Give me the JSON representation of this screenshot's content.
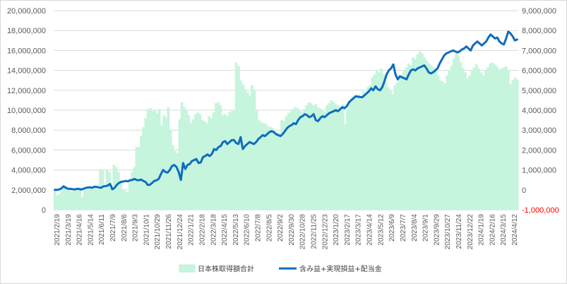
{
  "chart_data": {
    "type": "bar+line",
    "colors": {
      "bars": "#c6f5dd",
      "line": "#0f6cbd",
      "grid": "#d9d9d9",
      "negative_tick": "#ff0000"
    },
    "left_axis": {
      "min": 0,
      "max": 20000000,
      "step": 2000000,
      "tick_labels": [
        "0",
        "2,000,000",
        "4,000,000",
        "6,000,000",
        "8,000,000",
        "10,000,000",
        "12,000,000",
        "14,000,000",
        "16,000,000",
        "18,000,000",
        "20,000,000"
      ]
    },
    "right_axis": {
      "min": -1000000,
      "max": 9000000,
      "step": 1000000,
      "tick_labels": [
        "-1,000,000",
        "0",
        "1,000,000",
        "2,000,000",
        "3,000,000",
        "4,000,000",
        "5,000,000",
        "6,000,000",
        "7,000,000",
        "8,000,000",
        "9,000,000"
      ]
    },
    "x_tick_labels": [
      "2021/2/19",
      "2021/3/19",
      "2021/4/16",
      "2021/5/14",
      "2021/6/11",
      "2021/7/9",
      "2021/8/6",
      "2021/9/3",
      "2021/10/1",
      "2021/10/29",
      "2021/11/26",
      "2021/12/24",
      "2022/1/21",
      "2022/2/18",
      "2022/3/18",
      "2022/4/15",
      "2022/5/13",
      "2022/6/10",
      "2022/7/8",
      "2022/8/5",
      "2022/9/2",
      "2022/9/30",
      "2022/10/28",
      "2022/11/25",
      "2022/12/23",
      "2023/1/20",
      "2023/2/17",
      "2023/3/17",
      "2023/4/14",
      "2023/5/12",
      "2023/6/9",
      "2023/7/7",
      "2023/8/4",
      "2023/9/1",
      "2023/9/29",
      "2023/10/27",
      "2023/11/24",
      "2023/12/22",
      "2024/1/19",
      "2024/2/16",
      "2024/3/15",
      "2024/4/12"
    ],
    "series": [
      {
        "name": "日本株取得額合計",
        "type": "bar",
        "axis": "left",
        "values": [
          2100000,
          1500000,
          1600000,
          2100000,
          2200000,
          2400000,
          2100000,
          1900000,
          1900000,
          2000000,
          2200000,
          2300000,
          1300000,
          2000000,
          2000000,
          2100000,
          2300000,
          2200000,
          2200000,
          2100000,
          4100000,
          4000000,
          2500000,
          4000000,
          3800000,
          2500000,
          4500000,
          4300000,
          3800000,
          3000000,
          2100000,
          1900000,
          1800000,
          2900000,
          3800000,
          4300000,
          6300000,
          6300000,
          7400000,
          8300000,
          9200000,
          10100000,
          10200000,
          9900000,
          10000000,
          9700000,
          10100000,
          8500000,
          9500000,
          9300000,
          10300000,
          8000000,
          6500000,
          5900000,
          5700000,
          9100000,
          10800000,
          10300000,
          10000000,
          9500000,
          8700000,
          9100000,
          9600000,
          9800000,
          9600000,
          9000000,
          8900000,
          8700000,
          9400000,
          9200000,
          9800000,
          10700000,
          10800000,
          10500000,
          9500000,
          9600000,
          9400000,
          9800000,
          9900000,
          10000000,
          14800000,
          14400000,
          13000000,
          12600000,
          12100000,
          11800000,
          11500000,
          12500000,
          12000000,
          10000000,
          9000000,
          8800000,
          8700000,
          8600000,
          8400000,
          8300000,
          8200000,
          8000000,
          7800000,
          7700000,
          9000000,
          8900000,
          9400000,
          9700000,
          9900000,
          10100000,
          10300000,
          10200000,
          10000000,
          9800000,
          10100000,
          10500000,
          10800000,
          10700000,
          10500000,
          10600000,
          10300000,
          10200000,
          10000000,
          9800000,
          10500000,
          10700000,
          11000000,
          10800000,
          10600000,
          10500000,
          10400000,
          10600000,
          8600000,
          10100000,
          10800000,
          11300000,
          11200000,
          11500000,
          11600000,
          11300000,
          11900000,
          11700000,
          12300000,
          12500000,
          13300000,
          13600000,
          14000000,
          13800000,
          14200000,
          13600000,
          12800000,
          12300000,
          12000000,
          11600000,
          12500000,
          12800000,
          13300000,
          13600000,
          14000000,
          14300000,
          14700000,
          14500000,
          15300000,
          15100000,
          15600000,
          15900000,
          15700000,
          15300000,
          15000000,
          14700000,
          14500000,
          14300000,
          14000000,
          13500000,
          13000000,
          12900000,
          12700000,
          13500000,
          14000000,
          14500000,
          15200000,
          15700000,
          15500000,
          14800000,
          14200000,
          13800000,
          13200000,
          13500000,
          14000000,
          14300000,
          14600000,
          14200000,
          13800000,
          13500000,
          14000000,
          14300000,
          14700000,
          14800000,
          14600000,
          14400000,
          14100000,
          14200000,
          14300000,
          14400000,
          14000000,
          12600000,
          13000000,
          13300000,
          13100000
        ],
        "color": "#c6f5dd"
      },
      {
        "name": "含み益+実現損益+配当金",
        "type": "line",
        "axis": "right",
        "values": [
          0,
          0,
          20000,
          80000,
          180000,
          100000,
          60000,
          50000,
          40000,
          20000,
          60000,
          40000,
          20000,
          60000,
          100000,
          120000,
          130000,
          110000,
          160000,
          150000,
          120000,
          110000,
          180000,
          190000,
          220000,
          300000,
          30000,
          100000,
          250000,
          350000,
          400000,
          420000,
          450000,
          430000,
          480000,
          500000,
          550000,
          500000,
          480000,
          520000,
          450000,
          400000,
          250000,
          260000,
          350000,
          450000,
          480000,
          550000,
          800000,
          1000000,
          900000,
          870000,
          1000000,
          1200000,
          1250000,
          1150000,
          900000,
          500000,
          1350000,
          1050000,
          1250000,
          1300000,
          1450000,
          1500000,
          1550000,
          1350000,
          1380000,
          1650000,
          1700000,
          1780000,
          1700000,
          1800000,
          2050000,
          2000000,
          2150000,
          2200000,
          2400000,
          2450000,
          2300000,
          2400000,
          2500000,
          2500000,
          2350000,
          2300000,
          2650000,
          2050000,
          2200000,
          2300000,
          2400000,
          2350000,
          2300000,
          2400000,
          2550000,
          2650000,
          2750000,
          2700000,
          2800000,
          2900000,
          2950000,
          2900000,
          2800000,
          2750000,
          2700000,
          2800000,
          2950000,
          3100000,
          3200000,
          3250000,
          3350000,
          3300000,
          3500000,
          3650000,
          3700000,
          3800000,
          3750000,
          3650000,
          3700000,
          3800000,
          3500000,
          3450000,
          3600000,
          3700000,
          3650000,
          3750000,
          3850000,
          3900000,
          3950000,
          4000000,
          3950000,
          4050000,
          4150000,
          4100000,
          4200000,
          4400000,
          4500000,
          4600000,
          4700000,
          4680000,
          4660000,
          4650000,
          4750000,
          4850000,
          4950000,
          5100000,
          5000000,
          5200000,
          5050000,
          5000000,
          5150000,
          5450000,
          5800000,
          6000000,
          6100000,
          6300000,
          5800000,
          5550000,
          5700000,
          5650000,
          5600000,
          5550000,
          5800000,
          6000000,
          6050000,
          6000000,
          6100000,
          6150000,
          6200000,
          6250000,
          6100000,
          5900000,
          5850000,
          5900000,
          6000000,
          6100000,
          6350000,
          6550000,
          6750000,
          6850000,
          6900000,
          6950000,
          7000000,
          6950000,
          6900000,
          6950000,
          7050000,
          7100000,
          7200000,
          7100000,
          7000000,
          7250000,
          7350000,
          7450000,
          7350000,
          7250000,
          7350000,
          7450000,
          7650000,
          7800000,
          7700000,
          7600000,
          7650000,
          7450000,
          7350000,
          7300000,
          7600000,
          7950000,
          7850000,
          7700000,
          7500000,
          7550000
        ],
        "color": "#0f6cbd"
      }
    ],
    "legend": {
      "placement": "bottom"
    }
  }
}
